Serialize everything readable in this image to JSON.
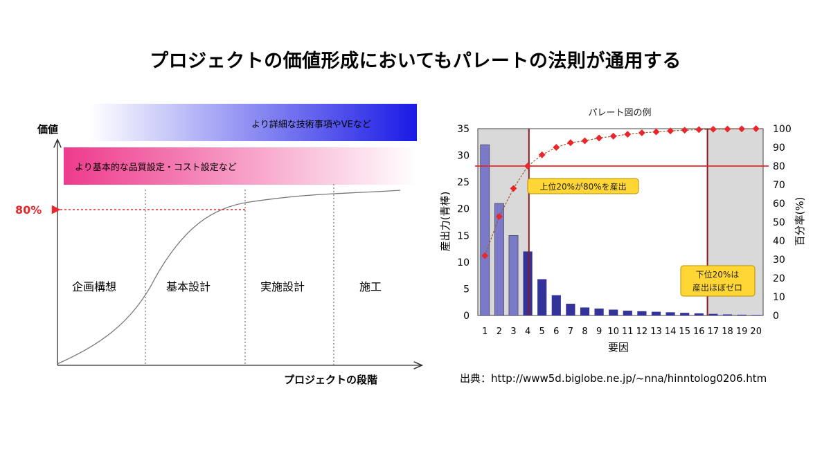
{
  "slide": {
    "title": "プロジェクトの価値形成においてもパレートの法則が通用する",
    "source": "出典：http://www5d.biglobe.ne.jp/~nna/hinntolog0206.htm"
  },
  "left_diagram": {
    "y_axis_label": "価値",
    "x_axis_label": "プロジェクトの段階",
    "marker_label": "80%",
    "band_top": "より詳細な技術事項やVEなど",
    "band_bottom": "より基本的な品質設定・コスト設定など",
    "phases": [
      "企画構想",
      "基本設計",
      "実施設計",
      "施工"
    ],
    "colors": {
      "marker": "#e8262b",
      "band_top": "#1a1ae6",
      "band_bottom": "#ee3a8c"
    }
  },
  "chart_data": {
    "type": "pareto",
    "title": "パレート図の例",
    "xlabel": "要因",
    "ylabel": "産出力(青棒)",
    "y2label": "百分率(%)",
    "categories": [
      "1",
      "2",
      "3",
      "4",
      "5",
      "6",
      "7",
      "8",
      "9",
      "10",
      "11",
      "12",
      "13",
      "14",
      "15",
      "16",
      "17",
      "18",
      "19",
      "20"
    ],
    "bar_values": [
      32,
      21,
      15,
      12,
      6.8,
      3.8,
      2.2,
      1.5,
      1.3,
      1.1,
      0.9,
      0.8,
      0.7,
      0.6,
      0.5,
      0.4,
      0.3,
      0.2,
      0.15,
      0.1
    ],
    "cumulative_percent": [
      32,
      53,
      68,
      80,
      86,
      90,
      92.5,
      93.5,
      95,
      96,
      97,
      97.8,
      98.3,
      98.8,
      99.2,
      99.5,
      99.7,
      99.8,
      99.9,
      100
    ],
    "ylim": [
      0,
      35
    ],
    "y2lim": [
      0,
      100
    ],
    "yticks": [
      0,
      5,
      10,
      15,
      20,
      25,
      30,
      35
    ],
    "y2ticks": [
      0,
      10,
      20,
      30,
      40,
      50,
      60,
      70,
      80,
      90,
      100
    ],
    "reference_line_percent": 80,
    "annotations": {
      "top": "上位20%が80%を産出",
      "bottom_line1": "下位20%は",
      "bottom_line2": "産出ほぼゼロ"
    },
    "colors": {
      "bars": "#33339a",
      "bars_light": "#7a7ac8",
      "markers": "#e8262b",
      "reference": "#e8262b",
      "dividers": "#8b1a1a",
      "callout": "#ffd633"
    }
  }
}
